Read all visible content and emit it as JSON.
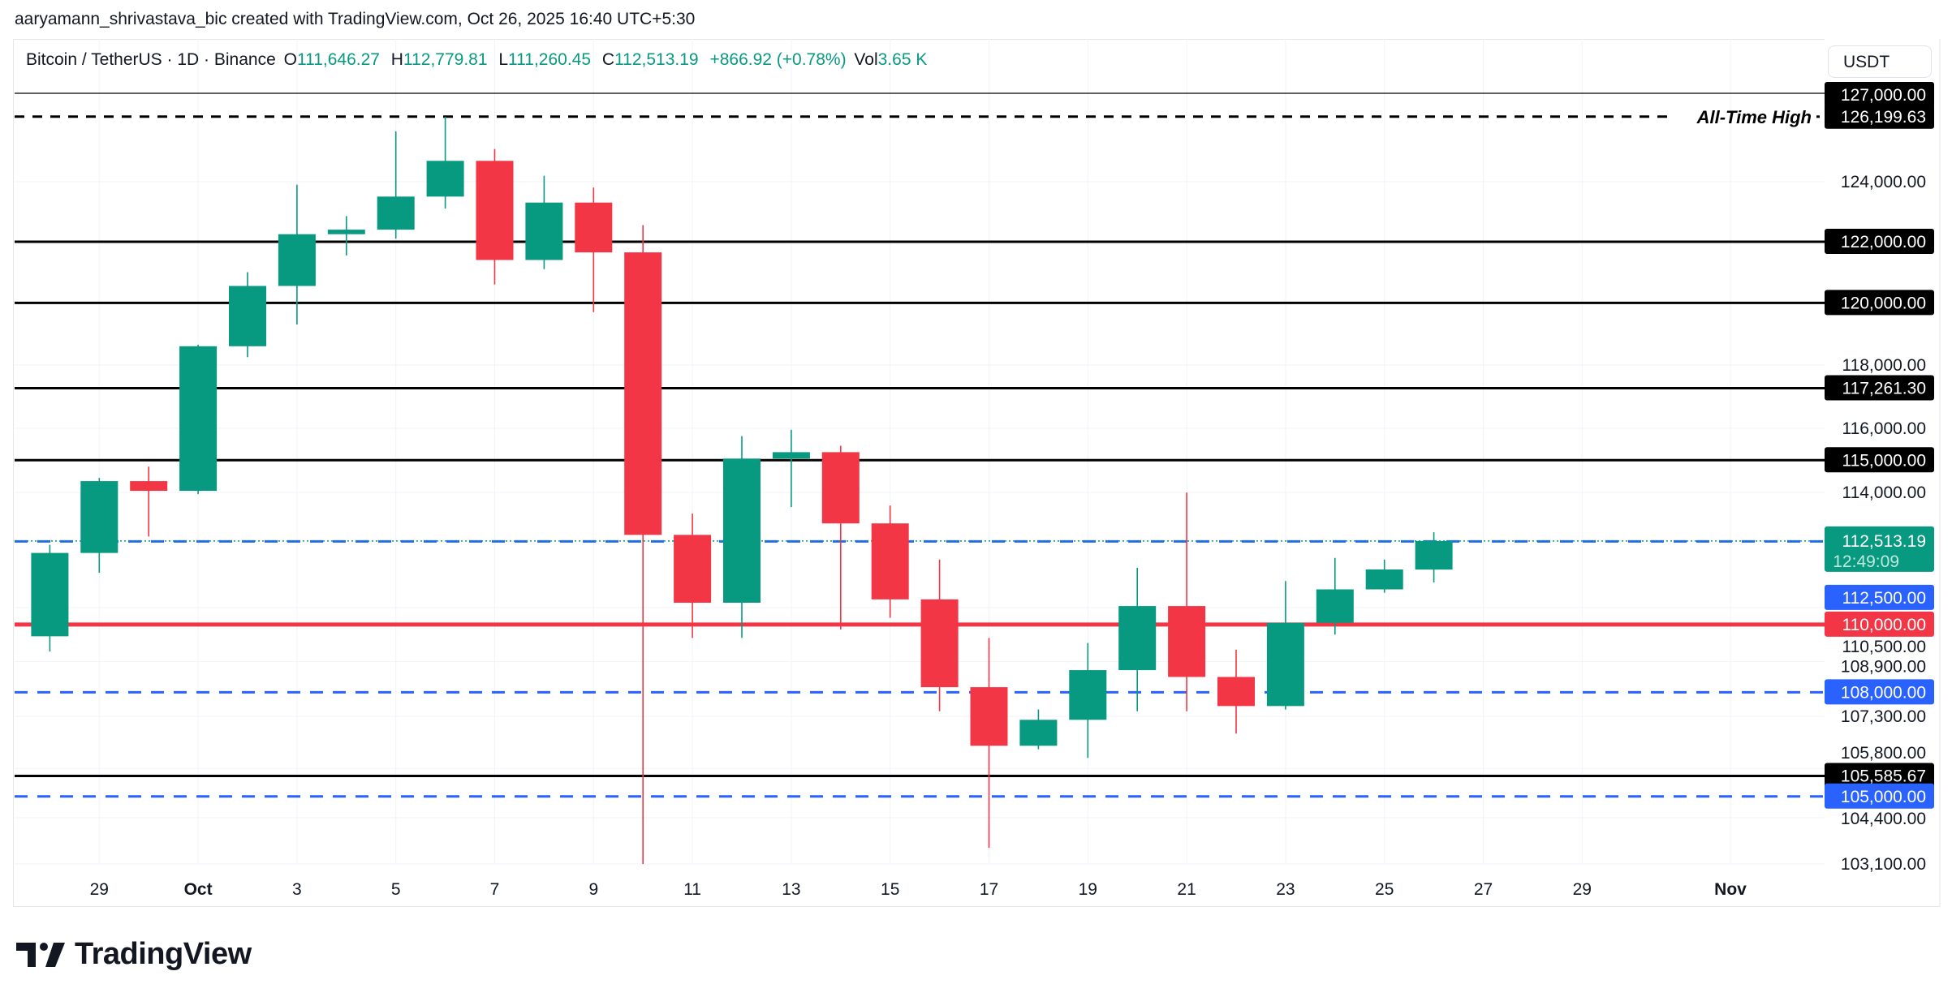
{
  "creator": "aaryamann_shrivastava_bic created with TradingView.com, Oct 26, 2025 16:40 UTC+5:30",
  "legend": {
    "symbol": "Bitcoin / TetherUS · 1D · Binance",
    "o_label": "O",
    "o_value": "111,646.27",
    "h_label": "H",
    "h_value": "112,779.81",
    "l_label": "L",
    "l_value": "111,260.45",
    "c_label": "C",
    "c_value": "112,513.19",
    "change": "+866.92 (+0.78%)",
    "vol_label": "Vol",
    "vol_value": "3.65 K"
  },
  "currency_button": "USDT",
  "brand": "TradingView",
  "colors": {
    "up": "#089981",
    "down": "#f23645",
    "blue": "#2962ff",
    "level": "#000000",
    "grid": "#f0f3fa"
  },
  "chart_data": {
    "type": "candlestick",
    "scale": "log",
    "ylim": [
      103100,
      127000
    ],
    "grid": true,
    "price_ticks": [
      "124,000.00",
      "118,000.00",
      "116,000.00",
      "114,000.00",
      "110,500.00",
      "108,900.00",
      "107,300.00",
      "105,800.00",
      "104,400.00",
      "103,100.00"
    ],
    "price_tick_values": [
      124000,
      118000,
      116000,
      114000,
      110500,
      108900,
      107300,
      105800,
      104400,
      103100
    ],
    "time_labels": [
      "29",
      "Oct",
      "3",
      "5",
      "7",
      "9",
      "11",
      "13",
      "15",
      "17",
      "19",
      "21",
      "23",
      "25",
      "27",
      "29",
      "Nov"
    ],
    "candles": [
      {
        "date": "2025-09-28",
        "o": 109650,
        "h": 112400,
        "l": 109200,
        "c": 112150
      },
      {
        "date": "2025-09-29",
        "o": 112150,
        "h": 114450,
        "l": 111550,
        "c": 114350
      },
      {
        "date": "2025-09-30",
        "o": 114350,
        "h": 114800,
        "l": 112650,
        "c": 114050
      },
      {
        "date": "2025-10-01",
        "o": 114050,
        "h": 118650,
        "l": 113950,
        "c": 118600
      },
      {
        "date": "2025-10-02",
        "o": 118600,
        "h": 121000,
        "l": 118250,
        "c": 120550
      },
      {
        "date": "2025-10-03",
        "o": 120550,
        "h": 123900,
        "l": 119300,
        "c": 122250
      },
      {
        "date": "2025-10-04",
        "o": 122250,
        "h": 122850,
        "l": 121550,
        "c": 122400
      },
      {
        "date": "2025-10-05",
        "o": 122400,
        "h": 125700,
        "l": 122100,
        "c": 123500
      },
      {
        "date": "2025-10-06",
        "o": 123500,
        "h": 126199.63,
        "l": 123100,
        "c": 124700
      },
      {
        "date": "2025-10-07",
        "o": 124700,
        "h": 125100,
        "l": 120600,
        "c": 121400
      },
      {
        "date": "2025-10-08",
        "o": 121400,
        "h": 124200,
        "l": 121100,
        "c": 123300
      },
      {
        "date": "2025-10-09",
        "o": 123300,
        "h": 123800,
        "l": 119700,
        "c": 121650
      },
      {
        "date": "2025-10-10",
        "o": 121650,
        "h": 122550,
        "l": 103000,
        "c": 112700
      },
      {
        "date": "2025-10-11",
        "o": 112700,
        "h": 113350,
        "l": 109600,
        "c": 110650
      },
      {
        "date": "2025-10-12",
        "o": 110650,
        "h": 115750,
        "l": 109600,
        "c": 115050
      },
      {
        "date": "2025-10-13",
        "o": 115050,
        "h": 115950,
        "l": 113550,
        "c": 115250
      },
      {
        "date": "2025-10-14",
        "o": 115250,
        "h": 115450,
        "l": 109850,
        "c": 113050
      },
      {
        "date": "2025-10-15",
        "o": 113050,
        "h": 113600,
        "l": 110200,
        "c": 110750
      },
      {
        "date": "2025-10-16",
        "o": 110750,
        "h": 111950,
        "l": 107450,
        "c": 108150
      },
      {
        "date": "2025-10-17",
        "o": 108150,
        "h": 109600,
        "l": 103550,
        "c": 106450
      },
      {
        "date": "2025-10-18",
        "o": 106450,
        "h": 107500,
        "l": 106350,
        "c": 107200
      },
      {
        "date": "2025-10-19",
        "o": 107200,
        "h": 109450,
        "l": 106100,
        "c": 108650
      },
      {
        "date": "2025-10-20",
        "o": 108650,
        "h": 111700,
        "l": 107450,
        "c": 110550
      },
      {
        "date": "2025-10-21",
        "o": 110550,
        "h": 114000,
        "l": 107450,
        "c": 108450
      },
      {
        "date": "2025-10-22",
        "o": 108450,
        "h": 109250,
        "l": 106800,
        "c": 107600
      },
      {
        "date": "2025-10-23",
        "o": 107600,
        "h": 111300,
        "l": 107500,
        "c": 110050
      },
      {
        "date": "2025-10-24",
        "o": 110050,
        "h": 112000,
        "l": 109700,
        "c": 111050
      },
      {
        "date": "2025-10-25",
        "o": 111050,
        "h": 111950,
        "l": 110950,
        "c": 111650
      },
      {
        "date": "2025-10-26",
        "o": 111646.27,
        "h": 112779.81,
        "l": 111260.45,
        "c": 112513.19
      }
    ],
    "levels": [
      {
        "price": 127000,
        "label": "127,000.00",
        "style": "thin",
        "color": "#000000"
      },
      {
        "price": 126199.63,
        "label": "126,199.63",
        "style": "dashed",
        "color": "#000000",
        "note": "All-Time High"
      },
      {
        "price": 122000,
        "label": "122,000.00",
        "style": "solid",
        "color": "#000000"
      },
      {
        "price": 120000,
        "label": "120,000.00",
        "style": "solid",
        "color": "#000000"
      },
      {
        "price": 117261.3,
        "label": "117,261.30",
        "style": "solid",
        "color": "#000000"
      },
      {
        "price": 115000,
        "label": "115,000.00",
        "style": "solid",
        "color": "#000000"
      },
      {
        "price": 112500,
        "label": "112,500.00",
        "style": "dashed",
        "color": "#2962ff"
      },
      {
        "price": 110000,
        "label": "110,000.00",
        "style": "thick",
        "color": "#f23645"
      },
      {
        "price": 108000,
        "label": "108,000.00",
        "style": "dashed",
        "color": "#2962ff"
      },
      {
        "price": 105585.67,
        "label": "105,585.67",
        "style": "solid",
        "color": "#000000"
      },
      {
        "price": 105000,
        "label": "105,000.00",
        "style": "dashed",
        "color": "#2962ff"
      }
    ],
    "last_price": {
      "price": 112513.19,
      "label": "112,513.19",
      "countdown": "12:49:09",
      "color": "#089981"
    }
  }
}
